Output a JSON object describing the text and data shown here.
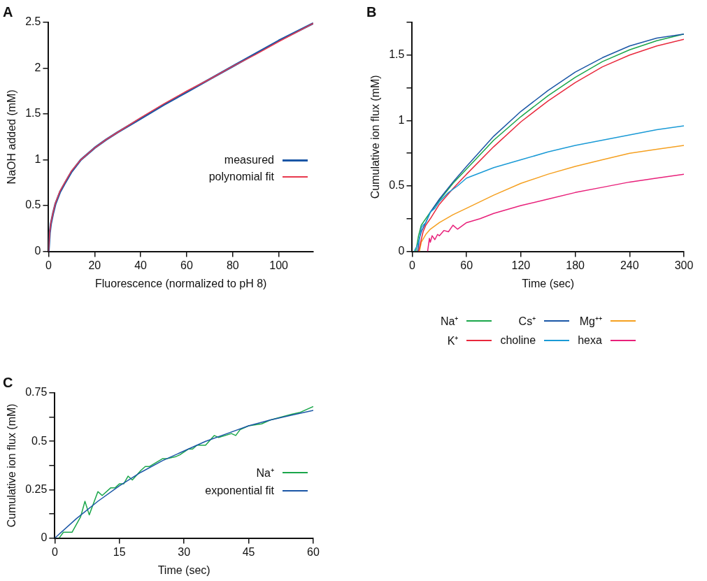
{
  "chart_data": [
    {
      "type": "line",
      "title": "A",
      "xlabel": "Fluorescence (normalized to pH 8)",
      "ylabel": "NaOH added (mM)",
      "xlim": [
        0,
        115
      ],
      "xticks": [
        0,
        20,
        40,
        60,
        80,
        100
      ],
      "ylim": [
        0,
        2.5
      ],
      "yticks": [
        0,
        0.5,
        1,
        1.5,
        2,
        2.5
      ],
      "legend": "right",
      "marker": "none",
      "series": [
        {
          "name": "measured",
          "color": "#1a56a6",
          "x": [
            0,
            0.5,
            1,
            2,
            3,
            5,
            7,
            10,
            14,
            20,
            25,
            30,
            40,
            50,
            60,
            70,
            80,
            90,
            100,
            115
          ],
          "values": [
            0,
            0.2,
            0.3,
            0.42,
            0.52,
            0.65,
            0.74,
            0.87,
            1.0,
            1.13,
            1.22,
            1.3,
            1.45,
            1.6,
            1.74,
            1.88,
            2.02,
            2.16,
            2.3,
            2.49
          ]
        },
        {
          "name": "polynomial fit",
          "color": "#e8394e",
          "x": [
            0,
            0.5,
            1,
            2,
            3,
            5,
            7,
            10,
            14,
            20,
            25,
            30,
            40,
            50,
            60,
            70,
            80,
            90,
            100,
            115
          ],
          "values": [
            0,
            0.21,
            0.31,
            0.43,
            0.53,
            0.66,
            0.75,
            0.88,
            1.0,
            1.13,
            1.22,
            1.3,
            1.46,
            1.61,
            1.75,
            1.88,
            2.02,
            2.15,
            2.29,
            2.49
          ]
        }
      ]
    },
    {
      "type": "line",
      "title": "B",
      "xlabel": "Time (sec)",
      "ylabel": "Cumulative ion flux (mM)",
      "xlim": [
        0,
        300
      ],
      "xticks": [
        0,
        60,
        120,
        180,
        240,
        300
      ],
      "ylim": [
        0,
        1.75
      ],
      "yticks": [
        0,
        {
          "value": 0.25,
          "label": null
        },
        0.5,
        {
          "value": 0.75,
          "label": null
        },
        1,
        {
          "value": 1.25,
          "label": null
        },
        1.5,
        {
          "value": 1.75,
          "label": null
        }
      ],
      "legend": "bottom",
      "marker": "none",
      "series": [
        {
          "name": "Na⁺",
          "color": "#1aa64a",
          "x": [
            4,
            7,
            10,
            15,
            20,
            30,
            45,
            60,
            90,
            120,
            150,
            180,
            210,
            240,
            270,
            300
          ],
          "values": [
            0,
            0.12,
            0.2,
            0.25,
            0.3,
            0.39,
            0.52,
            0.63,
            0.85,
            1.03,
            1.19,
            1.33,
            1.45,
            1.54,
            1.61,
            1.66
          ]
        },
        {
          "name": "Cs⁺",
          "color": "#1a56a6",
          "x": [
            6,
            8,
            10,
            15,
            20,
            30,
            45,
            60,
            90,
            120,
            150,
            180,
            210,
            240,
            270,
            300
          ],
          "values": [
            0,
            0.1,
            0.15,
            0.22,
            0.3,
            0.4,
            0.53,
            0.65,
            0.88,
            1.07,
            1.23,
            1.37,
            1.48,
            1.57,
            1.63,
            1.66
          ]
        },
        {
          "name": "Mg⁺⁺",
          "color": "#f5a020",
          "x": [
            8,
            10,
            15,
            20,
            30,
            45,
            60,
            90,
            120,
            150,
            180,
            210,
            240,
            270,
            300
          ],
          "values": [
            0,
            0.07,
            0.13,
            0.17,
            0.22,
            0.28,
            0.33,
            0.43,
            0.52,
            0.59,
            0.65,
            0.7,
            0.75,
            0.78,
            0.81
          ]
        },
        {
          "name": "K⁺",
          "color": "#e8283c",
          "x": [
            7,
            9,
            12,
            15,
            20,
            30,
            45,
            60,
            90,
            120,
            150,
            180,
            210,
            240,
            270,
            300
          ],
          "values": [
            0,
            0.06,
            0.15,
            0.2,
            0.25,
            0.36,
            0.48,
            0.59,
            0.8,
            0.99,
            1.15,
            1.29,
            1.41,
            1.5,
            1.57,
            1.62
          ]
        },
        {
          "name": "choline",
          "color": "#1a9ad6",
          "x": [
            2,
            6,
            8,
            10,
            12,
            15,
            20,
            25,
            30,
            40,
            50,
            60,
            90,
            120,
            150,
            180,
            210,
            240,
            270,
            300
          ],
          "values": [
            0,
            0.05,
            0.1,
            0.18,
            0.2,
            0.22,
            0.3,
            0.33,
            0.38,
            0.45,
            0.5,
            0.56,
            0.64,
            0.7,
            0.76,
            0.81,
            0.85,
            0.89,
            0.93,
            0.96
          ]
        },
        {
          "name": "hexa",
          "color": "#e8207a",
          "x": [
            17,
            19,
            20,
            22,
            25,
            28,
            30,
            35,
            40,
            45,
            50,
            60,
            75,
            90,
            120,
            150,
            180,
            210,
            240,
            270,
            300
          ],
          "values": [
            0,
            0.1,
            0.07,
            0.12,
            0.09,
            0.13,
            0.12,
            0.16,
            0.15,
            0.2,
            0.17,
            0.22,
            0.25,
            0.29,
            0.35,
            0.4,
            0.45,
            0.49,
            0.53,
            0.56,
            0.59
          ]
        }
      ]
    },
    {
      "type": "line",
      "title": "C",
      "xlabel": "Time (sec)",
      "ylabel": "Cumulative ion flux (mM)",
      "xlim": [
        0,
        60
      ],
      "xticks": [
        0,
        15,
        30,
        45,
        60
      ],
      "ylim": [
        0,
        0.75
      ],
      "yticks": [
        0,
        {
          "value": 0.125,
          "label": null
        },
        0.25,
        {
          "value": 0.375,
          "label": null
        },
        0.5,
        {
          "value": 0.625,
          "label": null
        },
        0.75
      ],
      "legend": "bottom right",
      "marker": "none",
      "series": [
        {
          "name": "Na⁺",
          "color": "#1aa64a",
          "x": [
            1,
            2,
            4,
            6,
            7,
            8,
            10,
            11,
            13,
            14,
            15,
            16,
            17,
            18,
            20,
            21,
            22,
            25,
            26,
            28,
            29,
            31,
            32,
            33,
            35,
            37,
            38,
            41,
            42,
            43,
            45,
            48,
            50,
            55,
            57,
            60
          ],
          "values": [
            0,
            0.03,
            0.03,
            0.11,
            0.19,
            0.12,
            0.24,
            0.22,
            0.26,
            0.26,
            0.28,
            0.28,
            0.32,
            0.3,
            0.35,
            0.37,
            0.37,
            0.41,
            0.41,
            0.42,
            0.43,
            0.46,
            0.46,
            0.48,
            0.48,
            0.53,
            0.52,
            0.54,
            0.53,
            0.56,
            0.58,
            0.59,
            0.61,
            0.64,
            0.65,
            0.68
          ]
        },
        {
          "name": "exponential fit",
          "color": "#1a56a6",
          "x": [
            0,
            5,
            10,
            15,
            20,
            25,
            30,
            35,
            40,
            45,
            50,
            55,
            60
          ],
          "values": [
            0,
            0.1,
            0.19,
            0.27,
            0.34,
            0.4,
            0.45,
            0.5,
            0.54,
            0.58,
            0.61,
            0.635,
            0.66
          ]
        }
      ]
    }
  ]
}
